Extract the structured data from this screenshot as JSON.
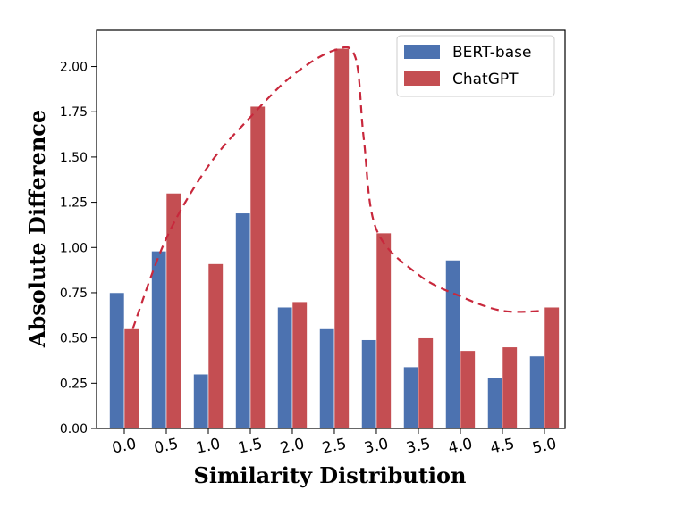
{
  "chart_data": {
    "type": "bar",
    "title": "",
    "xlabel": "Similarity Distribution",
    "ylabel": "Absolute Difference",
    "categories": [
      "0.0",
      "0.5",
      "1.0",
      "1.5",
      "2.0",
      "2.5",
      "3.0",
      "3.5",
      "4.0",
      "4.5",
      "5.0"
    ],
    "yticks": [
      "0.00",
      "0.25",
      "0.50",
      "0.75",
      "1.00",
      "1.25",
      "1.50",
      "1.75",
      "2.00"
    ],
    "ylim": [
      0,
      2.2
    ],
    "series": [
      {
        "name": "BERT-base",
        "color": "#4c72b0",
        "values": [
          0.75,
          0.98,
          0.3,
          1.19,
          0.67,
          0.55,
          0.49,
          0.34,
          0.93,
          0.28,
          0.4
        ]
      },
      {
        "name": "ChatGPT",
        "color": "#c44e52",
        "values": [
          0.55,
          1.3,
          0.91,
          1.78,
          0.7,
          2.1,
          1.08,
          0.5,
          0.43,
          0.45,
          0.67
        ]
      }
    ],
    "trend_curve": {
      "style": "dashed",
      "color": "#c8283c",
      "points": [
        [
          0.1,
          0.55
        ],
        [
          0.5,
          1.05
        ],
        [
          1.0,
          1.45
        ],
        [
          1.5,
          1.72
        ],
        [
          2.0,
          1.95
        ],
        [
          2.5,
          2.09
        ],
        [
          2.75,
          2.05
        ],
        [
          2.85,
          1.6
        ],
        [
          3.0,
          1.1
        ],
        [
          3.5,
          0.85
        ],
        [
          4.0,
          0.73
        ],
        [
          4.5,
          0.65
        ],
        [
          5.0,
          0.65
        ]
      ]
    },
    "legend_position": "top-right"
  }
}
